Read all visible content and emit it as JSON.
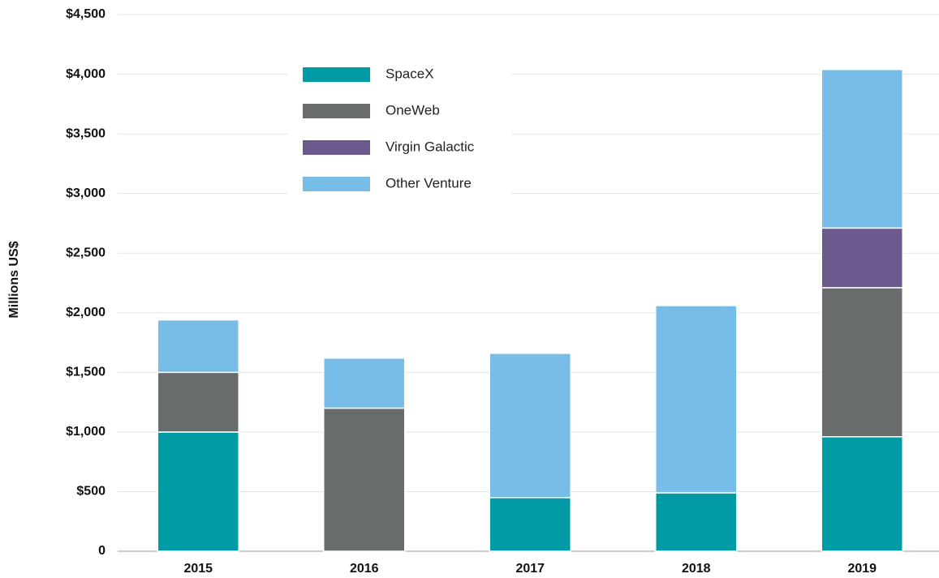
{
  "chart_data": {
    "type": "stacked_bar",
    "y_label": "Millions US$",
    "categories": [
      "2015",
      "2016",
      "2017",
      "2018",
      "2019"
    ],
    "series": [
      {
        "name": "SpaceX",
        "color": "#009ba4",
        "values": [
          1000,
          0,
          450,
          490,
          960
        ]
      },
      {
        "name": "OneWeb",
        "color": "#686c6c",
        "values": [
          500,
          1200,
          0,
          0,
          1250
        ]
      },
      {
        "name": "Virgin Galactic",
        "color": "#6c5a8f",
        "values": [
          0,
          0,
          0,
          0,
          500
        ]
      },
      {
        "name": "Other Venture",
        "color": "#77bde8",
        "values": [
          440,
          420,
          1210,
          1570,
          1330
        ]
      }
    ],
    "ylim": [
      0,
      4500
    ],
    "yticks": [
      0,
      {
        "value": 500,
        "label": "$500"
      },
      {
        "value": 1000,
        "label": "$1,000"
      },
      {
        "value": 1500,
        "label": "$1,500"
      },
      {
        "value": 2000,
        "label": "$2,000"
      },
      {
        "value": 2500,
        "label": "$2,500"
      },
      {
        "value": 3000,
        "label": "$3,000"
      },
      {
        "value": 3500,
        "label": "$3,500"
      },
      {
        "value": 4000,
        "label": "$4,000"
      },
      {
        "value": 4500,
        "label": "$4,500"
      }
    ],
    "grid": true
  }
}
